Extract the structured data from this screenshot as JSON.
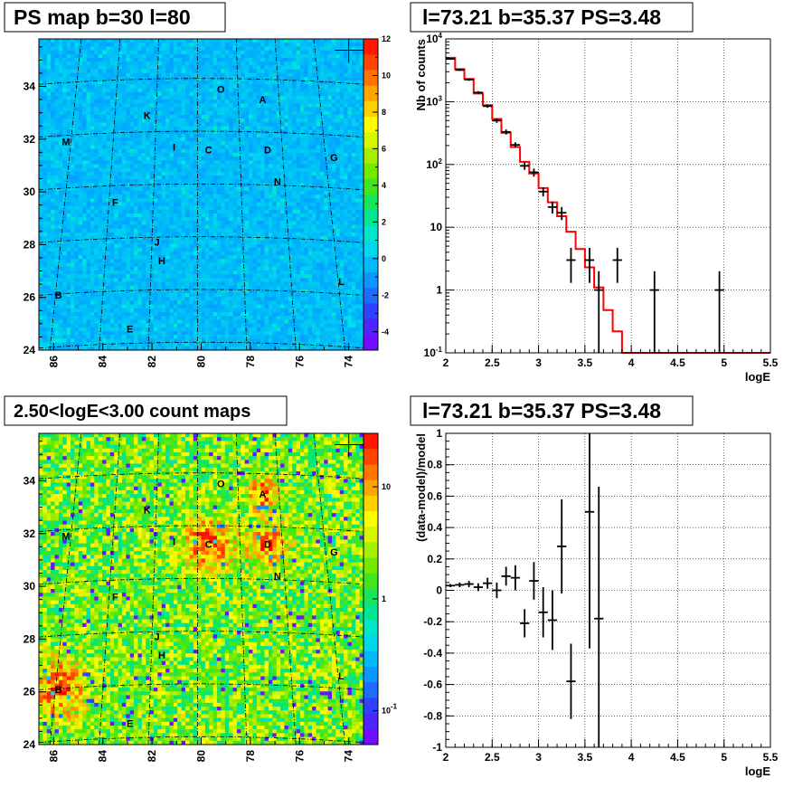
{
  "chart_data": [
    {
      "type": "heatmap",
      "title": "PS map b=30 l=80",
      "xlim": [
        86.6,
        73.4
      ],
      "ylim": [
        24,
        35.8
      ],
      "x_ticks": [
        "86",
        "84",
        "82",
        "80",
        "78",
        "76",
        "74"
      ],
      "y_ticks": [
        "24",
        "26",
        "28",
        "30",
        "32",
        "34"
      ],
      "colorbar": {
        "scale": "linear",
        "range": [
          -5,
          12
        ],
        "ticks": [
          "12",
          "10",
          "8",
          "6",
          "4",
          "2",
          "0",
          "-2",
          "-4"
        ]
      },
      "sources": [
        {
          "name": "O",
          "l": 79.2,
          "b": 33.9
        },
        {
          "name": "A",
          "l": 77.5,
          "b": 33.5
        },
        {
          "name": "K",
          "l": 82.2,
          "b": 32.9
        },
        {
          "name": "M",
          "l": 85.5,
          "b": 31.9
        },
        {
          "name": "I",
          "l": 81.1,
          "b": 31.7
        },
        {
          "name": "C",
          "l": 79.7,
          "b": 31.6
        },
        {
          "name": "D",
          "l": 77.3,
          "b": 31.6
        },
        {
          "name": "G",
          "l": 74.6,
          "b": 31.3
        },
        {
          "name": "N",
          "l": 76.9,
          "b": 30.4
        },
        {
          "name": "F",
          "l": 83.5,
          "b": 29.6
        },
        {
          "name": "J",
          "l": 81.8,
          "b": 28.1
        },
        {
          "name": "H",
          "l": 81.6,
          "b": 27.4
        },
        {
          "name": "L",
          "l": 74.3,
          "b": 26.6
        },
        {
          "name": "B",
          "l": 85.8,
          "b": 26.1
        },
        {
          "name": "E",
          "l": 82.9,
          "b": 24.8
        }
      ]
    },
    {
      "type": "line",
      "title": "l=73.21 b=35.37 PS=3.48",
      "xlabel": "logE",
      "ylabel": "Nb of counts",
      "xlim": [
        2,
        5.5
      ],
      "ylim": [
        0.1,
        10000
      ],
      "yscale": "log",
      "x_ticks": [
        "2",
        "2.5",
        "3",
        "3.5",
        "4",
        "4.5",
        "5",
        "5.5"
      ],
      "y_ticks": [
        "10^-1",
        "1",
        "10",
        "10^2",
        "10^3",
        "10^4"
      ],
      "grid": true,
      "series": [
        {
          "kind": "step",
          "edges": [
            2.0,
            2.1,
            2.2,
            2.3,
            2.4,
            2.5,
            2.6,
            2.7,
            2.8,
            2.9,
            3.0,
            3.1,
            3.2,
            3.3,
            3.4,
            3.5,
            3.6,
            3.7,
            3.8,
            3.9,
            4.0,
            4.1,
            4.2,
            4.3,
            4.4,
            4.5,
            4.6,
            4.7,
            4.8,
            4.9,
            5.0,
            5.1,
            5.2,
            5.3,
            5.4,
            5.5
          ],
          "values": [
            5000,
            3300,
            2300,
            1350,
            880,
            530,
            320,
            190,
            110,
            72,
            42,
            25,
            15,
            8.5,
            4.5,
            2.3,
            1.1,
            0.48,
            0.22,
            0.1,
            0.1,
            0.1,
            0.1,
            0.1,
            0.1,
            0.1,
            0.1,
            0.1,
            0.1,
            0.1,
            0.1,
            0.1,
            0.1,
            0.1,
            0.1
          ]
        },
        {
          "kind": "errorbars",
          "points": [
            {
              "x": 2.05,
              "y": 4800,
              "lo": 4650,
              "hi": 4950
            },
            {
              "x": 2.15,
              "y": 3200,
              "lo": 3080,
              "hi": 3320
            },
            {
              "x": 2.25,
              "y": 2250,
              "lo": 2150,
              "hi": 2350
            },
            {
              "x": 2.35,
              "y": 1400,
              "lo": 1330,
              "hi": 1470
            },
            {
              "x": 2.45,
              "y": 850,
              "lo": 800,
              "hi": 900
            },
            {
              "x": 2.55,
              "y": 500,
              "lo": 460,
              "hi": 540
            },
            {
              "x": 2.65,
              "y": 330,
              "lo": 300,
              "hi": 360
            },
            {
              "x": 2.75,
              "y": 205,
              "lo": 185,
              "hi": 225
            },
            {
              "x": 2.85,
              "y": 95,
              "lo": 82,
              "hi": 108
            },
            {
              "x": 2.95,
              "y": 75,
              "lo": 64,
              "hi": 86
            },
            {
              "x": 3.05,
              "y": 37,
              "lo": 31,
              "hi": 43
            },
            {
              "x": 3.15,
              "y": 21,
              "lo": 16.5,
              "hi": 25.5
            },
            {
              "x": 3.25,
              "y": 17,
              "lo": 13,
              "hi": 21
            },
            {
              "x": 3.35,
              "y": 3,
              "lo": 1.3,
              "hi": 4.7
            },
            {
              "x": 3.55,
              "y": 3,
              "lo": 1.3,
              "hi": 4.7
            },
            {
              "x": 3.65,
              "y": 1,
              "lo": 0.1,
              "hi": 2
            },
            {
              "x": 3.85,
              "y": 3,
              "lo": 1.3,
              "hi": 4.7
            },
            {
              "x": 4.25,
              "y": 1,
              "lo": 0.1,
              "hi": 2
            },
            {
              "x": 4.95,
              "y": 1,
              "lo": 0.1,
              "hi": 2
            }
          ]
        }
      ]
    },
    {
      "type": "heatmap",
      "title": "2.50<logE<3.00 count maps",
      "xlim": [
        86.6,
        73.4
      ],
      "ylim": [
        24,
        35.8
      ],
      "x_ticks": [
        "86",
        "84",
        "82",
        "80",
        "78",
        "76",
        "74"
      ],
      "y_ticks": [
        "24",
        "26",
        "28",
        "30",
        "32",
        "34"
      ],
      "colorbar": {
        "scale": "log",
        "range": [
          0.05,
          30
        ],
        "ticks": [
          "10",
          "1",
          "10^-1"
        ]
      },
      "bright_spots": [
        "C",
        "D",
        "A",
        "B"
      ]
    },
    {
      "type": "scatter",
      "title": "l=73.21 b=35.37 PS=3.48",
      "xlabel": "logE",
      "ylabel": "(data-model)/model",
      "xlim": [
        2,
        5.5
      ],
      "ylim": [
        -1,
        1
      ],
      "x_ticks": [
        "2",
        "2.5",
        "3",
        "3.5",
        "4",
        "4.5",
        "5",
        "5.5"
      ],
      "y_ticks": [
        "-1",
        "-0.8",
        "-0.6",
        "-0.4",
        "-0.2",
        "0",
        "0.2",
        "0.4",
        "0.6",
        "0.8",
        "1"
      ],
      "grid": true,
      "points": [
        {
          "x": 2.05,
          "y": 0.03,
          "lo": 0.02,
          "hi": 0.04
        },
        {
          "x": 2.15,
          "y": 0.035,
          "lo": 0.02,
          "hi": 0.05
        },
        {
          "x": 2.25,
          "y": 0.04,
          "lo": 0.02,
          "hi": 0.06
        },
        {
          "x": 2.35,
          "y": 0.02,
          "lo": -0.005,
          "hi": 0.045
        },
        {
          "x": 2.45,
          "y": 0.045,
          "lo": 0.01,
          "hi": 0.08
        },
        {
          "x": 2.55,
          "y": 0.0,
          "lo": -0.05,
          "hi": 0.05
        },
        {
          "x": 2.65,
          "y": 0.09,
          "lo": 0.03,
          "hi": 0.15
        },
        {
          "x": 2.75,
          "y": 0.08,
          "lo": 0.0,
          "hi": 0.16
        },
        {
          "x": 2.85,
          "y": -0.21,
          "lo": -0.3,
          "hi": -0.12
        },
        {
          "x": 2.95,
          "y": 0.06,
          "lo": -0.06,
          "hi": 0.18
        },
        {
          "x": 3.05,
          "y": -0.14,
          "lo": -0.3,
          "hi": 0.02
        },
        {
          "x": 3.15,
          "y": -0.19,
          "lo": -0.38,
          "hi": 0.0
        },
        {
          "x": 3.25,
          "y": 0.28,
          "lo": -0.02,
          "hi": 0.58
        },
        {
          "x": 3.35,
          "y": -0.58,
          "lo": -0.82,
          "hi": -0.34
        },
        {
          "x": 3.55,
          "y": 0.5,
          "lo": -0.37,
          "hi": 1.0
        },
        {
          "x": 3.65,
          "y": -0.18,
          "lo": -1.0,
          "hi": 0.66
        }
      ]
    }
  ],
  "source_labels": [
    "O",
    "A",
    "K",
    "M",
    "I",
    "C",
    "D",
    "G",
    "N",
    "F",
    "J",
    "H",
    "L",
    "B",
    "E"
  ]
}
